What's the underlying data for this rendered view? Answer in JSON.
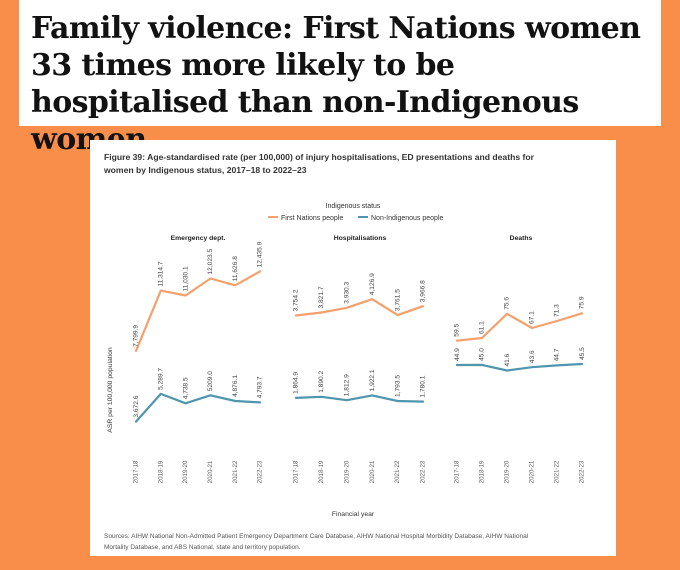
{
  "headline": "Family violence: First Nations women 33 times more likely to be hospitalised than non-Indigenous women",
  "colors": {
    "page_background": "#f98e4b",
    "first_nations": "#f4a06b",
    "non_indigenous": "#4f95ad"
  },
  "chart_data": {
    "type": "line",
    "title": "Figure 39: Age-standardised rate (per 100,000) of injury hospitalisations, ED presentations and deaths for women by Indigenous status, 2017–18 to 2022–23",
    "legend": {
      "title": "Indigenous status",
      "placement": "top-center",
      "entries": [
        "First Nations people",
        "Non-Indigenous people"
      ]
    },
    "xlabel": "Financial year",
    "ylabel": "ASR per 100,000 population",
    "categories": [
      "2017-18",
      "2018-19",
      "2019-20",
      "2020-21",
      "2021-22",
      "2022-23"
    ],
    "grid": false,
    "panels": [
      {
        "title": "Emergency dept.",
        "ylim": [
          2600,
          13800
        ],
        "series": [
          {
            "name": "First Nations people",
            "values": [
              7799.9,
              11314.7,
              11030.1,
              12023.5,
              11626.8,
              12435.9
            ],
            "labels": [
              "7,799.9",
              "11,314.7",
              "11,030.1",
              "12,023.5",
              "11,626.8",
              "12,435.9"
            ]
          },
          {
            "name": "Non-Indigenous people",
            "values": [
              3672.6,
              5289.7,
              4738.5,
              5209.0,
              4876.1,
              4793.7
            ],
            "labels": [
              "3,672.6",
              "5,289.7",
              "4,738.5",
              "5209.0",
              "4,876.1",
              "4,793.7"
            ]
          }
        ]
      },
      {
        "title": "Hospitalisations",
        "ylim": [
          900,
          5300
        ],
        "series": [
          {
            "name": "First Nations people",
            "values": [
              3754.2,
              3821.7,
              3930.3,
              4126.9,
              3761.5,
              3966.8
            ],
            "labels": [
              "3,754.2",
              "3,821.7",
              "3,930.3",
              "4,126.9",
              "3,761.5",
              "3,966.8"
            ]
          },
          {
            "name": "Non-Indigenous people",
            "values": [
              1864.9,
              1890.2,
              1812.9,
              1922.1,
              1793.5,
              1780.1
            ],
            "labels": [
              "1,864.9",
              "1,890.2",
              "1,812.9",
              "1,922.1",
              "1,793.5",
              "1,780.1"
            ]
          }
        ]
      },
      {
        "title": "Deaths",
        "ylim": [
          0,
          115
        ],
        "series": [
          {
            "name": "First Nations people",
            "values": [
              59.5,
              61.1,
              75.6,
              67.1,
              71.3,
              75.9
            ],
            "labels": [
              "59.5",
              "61.1",
              "75.6",
              "67.1",
              "71.3",
              "75.9"
            ]
          },
          {
            "name": "Non-Indigenous people",
            "values": [
              44.9,
              45.0,
              41.6,
              43.6,
              44.7,
              45.5
            ],
            "labels": [
              "44.9",
              "45.0",
              "41.6",
              "43.6",
              "44.7",
              "45.5"
            ]
          }
        ]
      }
    ],
    "sources_lines": [
      "Sources: AIHW National Non-Admitted Patient Emergency Department Care Database, AIHW National Hospital Morbidity Database, AIHW National",
      "Mortality Database, and ABS National, state and territory population."
    ]
  }
}
